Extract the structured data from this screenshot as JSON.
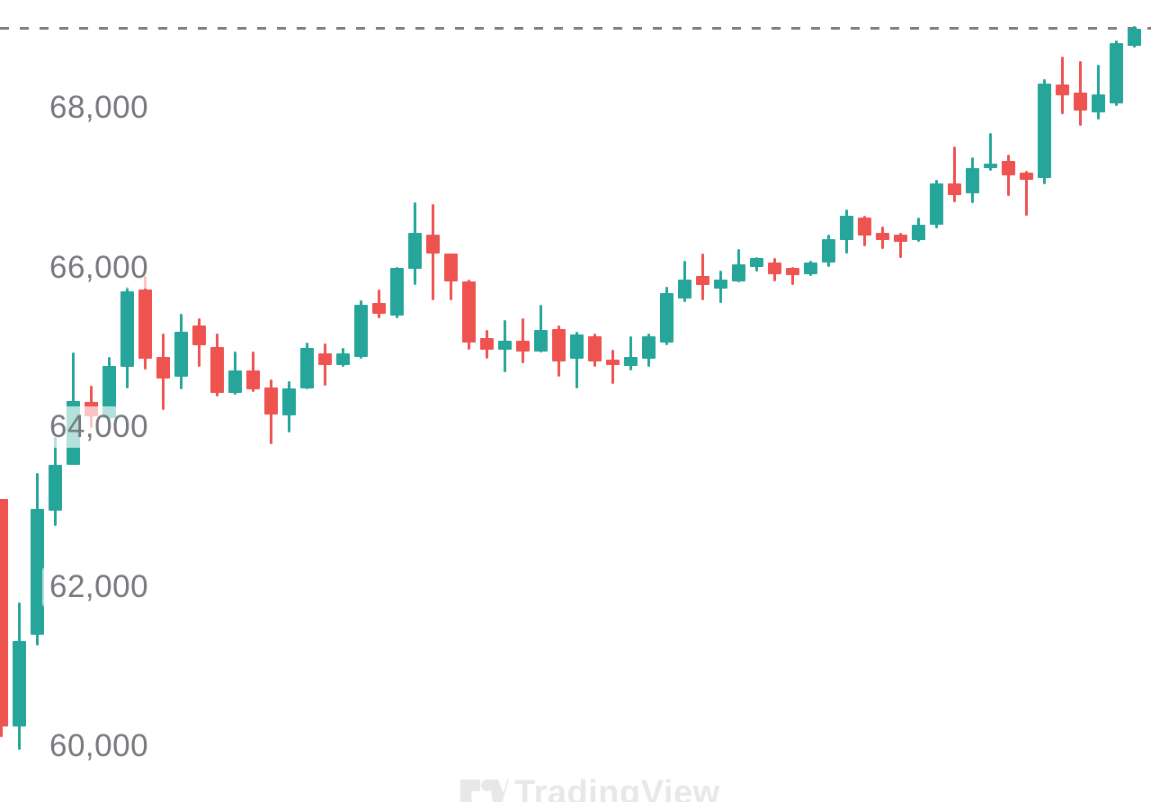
{
  "watermark": {
    "text": "TradingView"
  },
  "colors": {
    "background": "#ffffff",
    "up": "#26a69a",
    "down": "#ef5350",
    "axis_text": "#76797e",
    "dashed_line": "#7b7e85",
    "watermark": "#e8e8ea",
    "label_background": "rgba(255,255,255,0.66)"
  },
  "price_axis": {
    "labels": [
      {
        "text": "68,000",
        "price": 68000
      },
      {
        "text": "66,000",
        "price": 66000
      },
      {
        "text": "64,000",
        "price": 64000
      },
      {
        "text": "62,000",
        "price": 62000
      },
      {
        "text": "60,000",
        "price": 60000
      }
    ]
  },
  "chart_data": {
    "type": "candlestick",
    "title": "",
    "xlabel": "",
    "ylabel": "",
    "grid": "off",
    "legend": "none",
    "ylim": [
      59300,
      69350
    ],
    "y_ticks": [
      60000,
      62000,
      64000,
      66000,
      68000
    ],
    "y_tick_labels": [
      "60,000",
      "62,000",
      "64,000",
      "66,000",
      "68,000"
    ],
    "reference_line": {
      "price": 69000,
      "style": "dashed"
    },
    "bar_count": 64,
    "columns": [
      "open",
      "high",
      "low",
      "close"
    ],
    "candles": [
      [
        63100,
        63100,
        60110,
        60250
      ],
      [
        60250,
        61800,
        59950,
        61320
      ],
      [
        61400,
        63430,
        61260,
        62970
      ],
      [
        62950,
        63880,
        62760,
        63530
      ],
      [
        63530,
        64940,
        63530,
        64330
      ],
      [
        64320,
        64520,
        63990,
        64130
      ],
      [
        64110,
        64880,
        64070,
        64770
      ],
      [
        64750,
        65760,
        64490,
        65700
      ],
      [
        65720,
        65890,
        64720,
        64860
      ],
      [
        64880,
        65170,
        64210,
        64610
      ],
      [
        64630,
        65420,
        64470,
        65200
      ],
      [
        65270,
        65360,
        64750,
        65030
      ],
      [
        65000,
        65170,
        64380,
        64430
      ],
      [
        64430,
        64950,
        64410,
        64710
      ],
      [
        64710,
        64950,
        64440,
        64470
      ],
      [
        64500,
        64600,
        63790,
        64160
      ],
      [
        64150,
        64580,
        63930,
        64490
      ],
      [
        64490,
        65060,
        64470,
        64990
      ],
      [
        64920,
        65050,
        64520,
        64780
      ],
      [
        64780,
        64990,
        64750,
        64920
      ],
      [
        64880,
        65590,
        64860,
        65530
      ],
      [
        65550,
        65720,
        65360,
        65420
      ],
      [
        65400,
        66010,
        65360,
        66000
      ],
      [
        65980,
        66820,
        65780,
        66430
      ],
      [
        66410,
        66790,
        65590,
        66180
      ],
      [
        66170,
        66180,
        65590,
        65830
      ],
      [
        65830,
        65850,
        64970,
        65060
      ],
      [
        65110,
        65220,
        64860,
        64970
      ],
      [
        64970,
        65340,
        64690,
        65080
      ],
      [
        65080,
        65360,
        64800,
        64950
      ],
      [
        64950,
        65530,
        64940,
        65220
      ],
      [
        65230,
        65270,
        64630,
        64820
      ],
      [
        64860,
        65190,
        64490,
        65160
      ],
      [
        65140,
        65170,
        64750,
        64820
      ],
      [
        64840,
        64970,
        64540,
        64780
      ],
      [
        64770,
        65140,
        64710,
        64880
      ],
      [
        64860,
        65170,
        64750,
        65140
      ],
      [
        65060,
        65760,
        65030,
        65680
      ],
      [
        65610,
        66090,
        65570,
        65850
      ],
      [
        65890,
        66170,
        65590,
        65780
      ],
      [
        65730,
        65960,
        65550,
        65850
      ],
      [
        65830,
        66230,
        65810,
        66040
      ],
      [
        66000,
        66130,
        65950,
        66120
      ],
      [
        66060,
        66120,
        65830,
        65920
      ],
      [
        66000,
        66010,
        65780,
        65900
      ],
      [
        65920,
        66090,
        65890,
        66060
      ],
      [
        66060,
        66410,
        66010,
        66350
      ],
      [
        66340,
        66730,
        66180,
        66650
      ],
      [
        66630,
        66650,
        66260,
        66400
      ],
      [
        66430,
        66510,
        66230,
        66340
      ],
      [
        66410,
        66430,
        66120,
        66320
      ],
      [
        66340,
        66620,
        66320,
        66540
      ],
      [
        66540,
        67100,
        66490,
        67050
      ],
      [
        67050,
        67520,
        66820,
        66910
      ],
      [
        66930,
        67380,
        66800,
        67240
      ],
      [
        67240,
        67690,
        67210,
        67300
      ],
      [
        67330,
        67410,
        66900,
        67160
      ],
      [
        67190,
        67210,
        66650,
        67100
      ],
      [
        67120,
        68360,
        67040,
        68300
      ],
      [
        68290,
        68640,
        67920,
        68160
      ],
      [
        68190,
        68590,
        67780,
        67970
      ],
      [
        67940,
        68540,
        67850,
        68170
      ],
      [
        68060,
        68840,
        68020,
        68810
      ],
      [
        68780,
        69030,
        68750,
        68990
      ]
    ]
  }
}
